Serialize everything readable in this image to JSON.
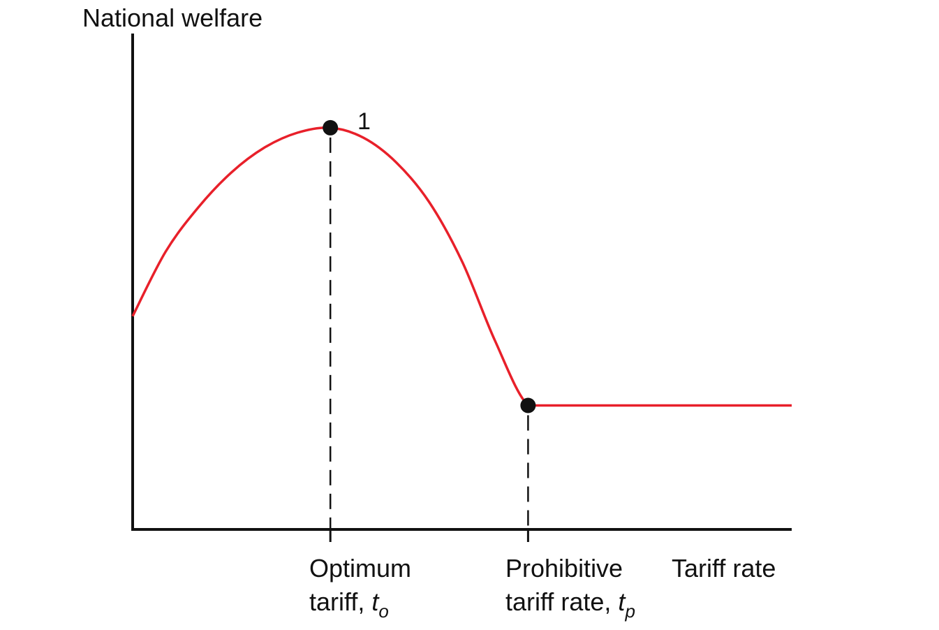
{
  "chart_data": {
    "type": "line",
    "ylabel": "National welfare",
    "xlabel": "Tariff rate",
    "grid": false,
    "legend": "none",
    "curve_color": "#e8202a",
    "axis_color": "#111111",
    "xlim": [
      0,
      10
    ],
    "ylim": [
      0,
      10
    ],
    "series": [
      {
        "x": [
          0,
          0.5,
          1,
          1.5,
          2,
          2.5,
          3,
          3.5,
          4,
          4.5,
          5,
          5.5,
          6,
          6.5,
          7,
          7.5,
          8,
          8.5,
          9,
          10
        ],
        "values": [
          4.3,
          5.6,
          6.5,
          7.2,
          7.7,
          8.0,
          8.1,
          7.9,
          7.4,
          6.6,
          5.4,
          3.8,
          2.5,
          2.5,
          2.5,
          2.5,
          2.5,
          2.5,
          2.5,
          2.5
        ]
      }
    ],
    "points": [
      {
        "label": "1",
        "x": 3,
        "y": 8.1
      },
      {
        "label": "",
        "x": 6,
        "y": 2.5
      }
    ],
    "markers": [
      {
        "x": 3,
        "label_line1": "Optimum",
        "label_line2": "tariff,",
        "symbol": "t",
        "subscript": "o"
      },
      {
        "x": 6,
        "label_line1": "Prohibitive",
        "label_line2": "tariff rate,",
        "symbol": "t",
        "subscript": "p"
      }
    ]
  }
}
